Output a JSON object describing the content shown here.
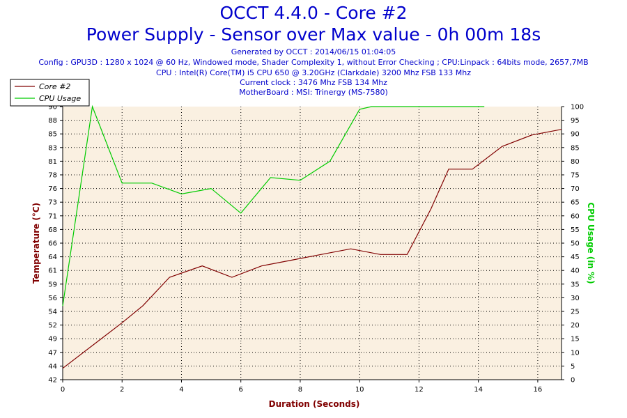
{
  "header": {
    "title_line1": "OCCT 4.4.0 - Core #2",
    "title_line2": "Power Supply - Sensor over Max value - 0h 00m 18s",
    "generated": "Generated by OCCT : 2014/06/15 01:04:05",
    "config": "Config : GPU3D : 1280 x 1024 @ 60 Hz, Windowed mode, Shader Complexity 1, without Error Checking ; CPU:Linpack : 64bits mode, 2657,7MB",
    "cpu": "CPU : Intel(R) Core(TM) i5 CPU 650 @ 3.20GHz (Clarkdale) 3200 Mhz FSB 133 Mhz",
    "clock": "Current clock : 3476 Mhz FSB 134 Mhz",
    "motherboard": "MotherBoard : MSI: Trinergy (MS-7580)"
  },
  "chart_data": {
    "type": "line",
    "xlabel": "Duration (Seconds)",
    "ylabel_left": "Temperature (°C)",
    "ylabel_right": "CPU Usage (in %)",
    "xlim": [
      0,
      16.8
    ],
    "ylim_left": [
      42,
      90
    ],
    "ylim_right": [
      0,
      100
    ],
    "x_ticks": [
      "0",
      "2",
      "4",
      "6",
      "8",
      "10",
      "12",
      "14",
      "16"
    ],
    "y_ticks_left": [
      "42",
      "44",
      "47",
      "49",
      "52",
      "54",
      "56",
      "59",
      "61",
      "64",
      "66",
      "68",
      "71",
      "73",
      "76",
      "78",
      "81",
      "83",
      "85",
      "88",
      "90"
    ],
    "y_ticks_right": [
      "0",
      "5",
      "10",
      "15",
      "20",
      "25",
      "30",
      "35",
      "40",
      "45",
      "50",
      "55",
      "60",
      "65",
      "70",
      "75",
      "80",
      "85",
      "90",
      "95",
      "100"
    ],
    "grid": true,
    "legend_position": "top-left",
    "colors": {
      "core": "#800000",
      "cpu": "#00cc00",
      "plot_bg": "#faf0e1",
      "axis_label_left": "#800000",
      "axis_label_right": "#00cc00"
    },
    "series": [
      {
        "name": "Core #2",
        "axis": "left",
        "x": [
          0,
          1,
          2,
          2.7,
          3.6,
          4.7,
          5.7,
          6.7,
          7.7,
          8.7,
          9.7,
          10.7,
          11.6,
          12.4,
          13.0,
          13.8,
          14.8,
          15.8,
          16.8
        ],
        "y": [
          44,
          48,
          52,
          55,
          60,
          62,
          60,
          62,
          63,
          64,
          65,
          64,
          64,
          72,
          79,
          79,
          83,
          85,
          86
        ]
      },
      {
        "name": "CPU Usage",
        "axis": "right",
        "x": [
          0,
          1,
          2,
          3,
          4,
          5,
          6,
          7,
          8,
          9,
          10,
          10.4,
          11,
          12,
          13,
          14,
          14.2
        ],
        "y": [
          27,
          100,
          72,
          72,
          68,
          70,
          61,
          74,
          73,
          80,
          99,
          100,
          100,
          100,
          100,
          100,
          100
        ]
      }
    ]
  }
}
